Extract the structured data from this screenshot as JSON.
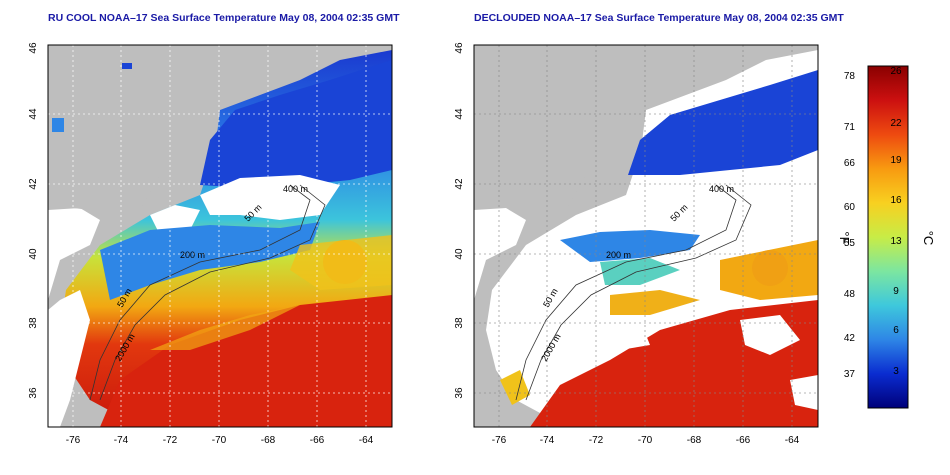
{
  "titles": {
    "left": "RU COOL NOAA–17 Sea Surface Temperature May 08, 2004 02:35 GMT",
    "right": "DECLOUDED NOAA–17 Sea Surface Temperature May 08, 2004 02:35 GMT"
  },
  "axes": {
    "lon_ticks": [
      "-76",
      "-74",
      "-72",
      "-70",
      "-68",
      "-66",
      "-64"
    ],
    "lat_ticks": [
      "36",
      "38",
      "40",
      "42",
      "44",
      "46"
    ],
    "lon_range": [
      -77,
      -63
    ],
    "lat_range": [
      35,
      46
    ]
  },
  "contour_labels": {
    "c400": "400 m",
    "c50": "50 m",
    "c200": "200 m",
    "c2000": "2000 m"
  },
  "colorbar": {
    "f_unit": "°F",
    "c_unit": "°C",
    "f_ticks": [
      "78",
      "71",
      "66",
      "60",
      "55",
      "48",
      "42",
      "37"
    ],
    "c_ticks": [
      "26",
      "22",
      "19",
      "16",
      "13",
      "9",
      "6",
      "3"
    ],
    "colors": [
      "#00007a",
      "#0a2cd0",
      "#2e86e6",
      "#3ec8dc",
      "#7ce6a0",
      "#c8ec46",
      "#f8d020",
      "#f89a10",
      "#ee4a10",
      "#cc1010",
      "#8a0000"
    ]
  },
  "map_colors": {
    "land": "#bebebe",
    "cloud": "#ffffff",
    "cold": "#1a44d6",
    "cool": "#2fa8ec",
    "warm": "#f0a412",
    "hot": "#d8230e"
  }
}
